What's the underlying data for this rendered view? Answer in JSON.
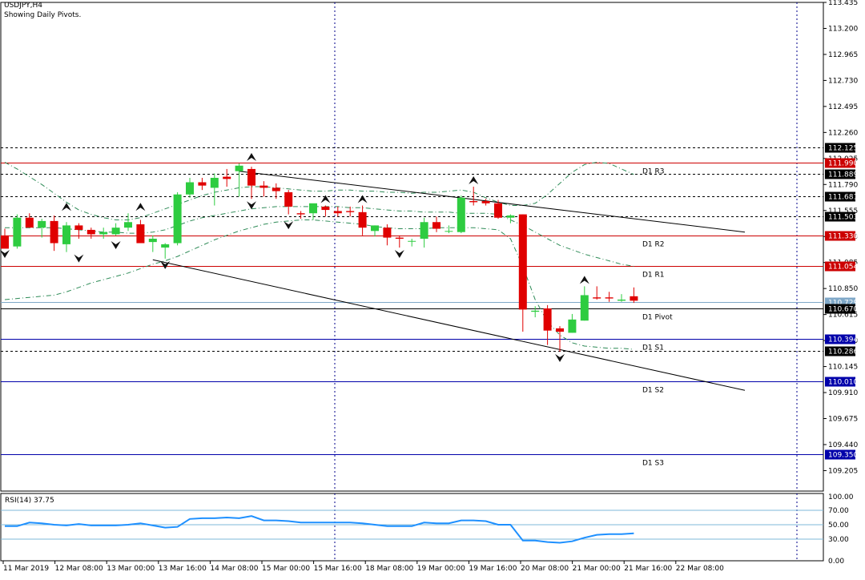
{
  "chart_data": {
    "type": "candlestick",
    "symbol_line": "USDJPY,H4",
    "subtitle": "Showing Daily Pivots.",
    "y_ticks": [
      "113.435",
      "113.200",
      "112.965",
      "112.730",
      "112.495",
      "112.260",
      "112.025",
      "111.790",
      "111.555",
      "111.320",
      "111.085",
      "110.850",
      "110.615",
      "110.380",
      "110.145",
      "109.910",
      "109.675",
      "109.440",
      "109.205"
    ],
    "y_range": [
      109.02,
      113.435
    ],
    "x_labels": [
      "11 Mar 2019",
      "12 Mar 08:00",
      "13 Mar 00:00",
      "13 Mar 16:00",
      "14 Mar 08:00",
      "15 Mar 00:00",
      "15 Mar 16:00",
      "18 Mar 08:00",
      "19 Mar 00:00",
      "19 Mar 16:00",
      "20 Mar 08:00",
      "21 Mar 00:00",
      "21 Mar 16:00",
      "22 Mar 08:00"
    ],
    "candles": [
      [
        111.33,
        111.39,
        111.22,
        111.21
      ],
      [
        111.23,
        111.52,
        111.21,
        111.49
      ],
      [
        111.49,
        111.53,
        111.41,
        111.4
      ],
      [
        111.4,
        111.48,
        111.31,
        111.46
      ],
      [
        111.46,
        111.51,
        111.19,
        111.26
      ],
      [
        111.25,
        111.45,
        111.18,
        111.42
      ],
      [
        111.42,
        111.44,
        111.3,
        111.38
      ],
      [
        111.38,
        111.4,
        111.3,
        111.34
      ],
      [
        111.34,
        111.4,
        111.3,
        111.36
      ],
      [
        111.34,
        111.44,
        111.33,
        111.4
      ],
      [
        111.4,
        111.53,
        111.37,
        111.45
      ],
      [
        111.43,
        111.47,
        111.29,
        111.26
      ],
      [
        111.27,
        111.33,
        111.18,
        111.3
      ],
      [
        111.22,
        111.26,
        111.12,
        111.25
      ],
      [
        111.26,
        111.72,
        111.24,
        111.7
      ],
      [
        111.7,
        111.85,
        111.67,
        111.81
      ],
      [
        111.81,
        111.85,
        111.74,
        111.78
      ],
      [
        111.76,
        111.89,
        111.6,
        111.85
      ],
      [
        111.86,
        111.93,
        111.77,
        111.84
      ],
      [
        111.91,
        111.98,
        111.68,
        111.96
      ],
      [
        111.93,
        111.95,
        111.66,
        111.78
      ],
      [
        111.78,
        111.82,
        111.68,
        111.76
      ],
      [
        111.76,
        111.8,
        111.66,
        111.73
      ],
      [
        111.72,
        111.74,
        111.52,
        111.59
      ],
      [
        111.53,
        111.55,
        111.48,
        111.52
      ],
      [
        111.53,
        111.6,
        111.47,
        111.62
      ],
      [
        111.59,
        111.6,
        111.5,
        111.56
      ],
      [
        111.55,
        111.59,
        111.5,
        111.53
      ],
      [
        111.55,
        111.59,
        111.5,
        111.54
      ],
      [
        111.54,
        111.6,
        111.33,
        111.4
      ],
      [
        111.37,
        111.42,
        111.32,
        111.42
      ],
      [
        111.4,
        111.43,
        111.24,
        111.31
      ],
      [
        111.31,
        111.33,
        111.22,
        111.3
      ],
      [
        111.28,
        111.3,
        111.23,
        111.28
      ],
      [
        111.3,
        111.49,
        111.22,
        111.45
      ],
      [
        111.45,
        111.5,
        111.36,
        111.39
      ],
      [
        111.37,
        111.42,
        111.35,
        111.37
      ],
      [
        111.36,
        111.69,
        111.35,
        111.67
      ],
      [
        111.64,
        111.77,
        111.6,
        111.63
      ],
      [
        111.64,
        111.66,
        111.6,
        111.62
      ],
      [
        111.62,
        111.65,
        111.48,
        111.49
      ],
      [
        111.49,
        111.52,
        111.44,
        111.51
      ],
      [
        111.52,
        111.52,
        110.46,
        110.66
      ],
      [
        110.64,
        110.69,
        110.59,
        110.65
      ],
      [
        110.67,
        110.7,
        110.34,
        110.47
      ],
      [
        110.49,
        110.51,
        110.28,
        110.46
      ],
      [
        110.45,
        110.62,
        110.45,
        110.57
      ],
      [
        110.56,
        110.87,
        110.56,
        110.79
      ],
      [
        110.77,
        110.87,
        110.75,
        110.76
      ],
      [
        110.77,
        110.82,
        110.73,
        110.76
      ],
      [
        110.74,
        110.8,
        110.73,
        110.75
      ],
      [
        110.78,
        110.86,
        110.72,
        110.74
      ]
    ],
    "horizontal_levels": [
      {
        "value": 112.125,
        "label": "112.125",
        "style": "dotted",
        "color": "#000000"
      },
      {
        "value": 111.99,
        "label": "111.990",
        "style": "solid",
        "color": "#cc0000",
        "name": "D1 R3"
      },
      {
        "value": 111.889,
        "label": "111.889",
        "style": "dotted",
        "color": "#000000"
      },
      {
        "value": 111.681,
        "label": "111.681",
        "style": "dotted",
        "color": "#000000"
      },
      {
        "value": 111.503,
        "label": "111.503",
        "style": "dotted",
        "color": "#000000"
      },
      {
        "value": 111.33,
        "label": "111.330",
        "style": "solid",
        "color": "#cc0000",
        "name": "D1 R2"
      },
      {
        "value": 111.054,
        "label": "111.054",
        "style": "solid",
        "color": "#cc0000",
        "name": "D1 R1"
      },
      {
        "value": 110.729,
        "label": "110.729",
        "style": "solid",
        "color": "#7fa8c8"
      },
      {
        "value": 110.67,
        "label": "110.670",
        "style": "solid",
        "color": "#000000",
        "name": "D1 Pivot"
      },
      {
        "value": 110.394,
        "label": "110.394",
        "style": "solid",
        "color": "#0000aa",
        "name": "D1 S1"
      },
      {
        "value": 110.286,
        "label": "110.286",
        "style": "dotted",
        "color": "#000000"
      },
      {
        "value": 110.01,
        "label": "110.010",
        "style": "solid",
        "color": "#0000aa",
        "name": "D1 S2"
      },
      {
        "value": 109.35,
        "label": "109.350",
        "style": "solid",
        "color": "#0000aa",
        "name": "D1 S3"
      }
    ],
    "trendlines": [
      {
        "from": [
          19,
          111.91
        ],
        "to": [
          60,
          111.36
        ]
      },
      {
        "from": [
          12,
          111.11
        ],
        "to": [
          60,
          109.93
        ]
      }
    ],
    "upper_band": [
      111.99,
      111.93,
      111.86,
      111.79,
      111.71,
      111.63,
      111.56,
      111.52,
      111.49,
      111.47,
      111.47,
      111.49,
      111.53,
      111.57,
      111.61,
      111.65,
      111.69,
      111.72,
      111.74,
      111.76,
      111.77,
      111.77,
      111.76,
      111.75,
      111.74,
      111.73,
      111.73,
      111.74,
      111.74,
      111.73,
      111.73,
      111.72,
      111.72,
      111.71,
      111.72,
      111.72,
      111.73,
      111.74,
      111.72,
      111.67,
      111.63,
      111.6,
      111.6,
      111.62,
      111.7,
      111.8,
      111.9,
      111.97,
      111.99,
      111.98,
      111.93,
      111.88
    ],
    "middle_band": [
      111.4,
      111.4,
      111.4,
      111.4,
      111.4,
      111.39,
      111.38,
      111.37,
      111.36,
      111.36,
      111.35,
      111.35,
      111.36,
      111.38,
      111.42,
      111.46,
      111.49,
      111.51,
      111.53,
      111.55,
      111.57,
      111.58,
      111.59,
      111.59,
      111.59,
      111.59,
      111.59,
      111.59,
      111.58,
      111.58,
      111.57,
      111.56,
      111.55,
      111.55,
      111.54,
      111.54,
      111.54,
      111.53,
      111.53,
      111.53,
      111.52,
      111.47,
      111.42,
      111.36,
      111.3,
      111.24,
      111.2,
      111.16,
      111.13,
      111.1,
      111.07,
      111.05
    ],
    "lower_band": [
      110.75,
      110.76,
      110.77,
      110.78,
      110.79,
      110.82,
      110.86,
      110.9,
      110.93,
      110.96,
      110.99,
      111.03,
      111.07,
      111.1,
      111.14,
      111.19,
      111.24,
      111.29,
      111.33,
      111.37,
      111.4,
      111.43,
      111.45,
      111.46,
      111.47,
      111.47,
      111.46,
      111.45,
      111.44,
      111.43,
      111.41,
      111.4,
      111.39,
      111.39,
      111.39,
      111.4,
      111.4,
      111.4,
      111.4,
      111.39,
      111.38,
      111.3,
      111.05,
      110.75,
      110.55,
      110.43,
      110.36,
      110.33,
      110.32,
      110.31,
      110.31,
      110.3
    ],
    "up_fractals": [
      [
        5,
        111.53
      ],
      [
        11,
        111.53
      ],
      [
        20,
        111.98
      ],
      [
        26,
        111.6
      ],
      [
        29,
        111.6
      ],
      [
        38,
        111.77
      ],
      [
        47,
        110.87
      ]
    ],
    "down_fractals": [
      [
        0,
        111.22
      ],
      [
        6,
        111.18
      ],
      [
        9,
        111.3
      ],
      [
        13,
        111.12
      ],
      [
        20,
        111.66
      ],
      [
        23,
        111.48
      ],
      [
        32,
        111.22
      ],
      [
        45,
        110.28
      ]
    ],
    "rsi": {
      "label": "RSI(14) 37.75",
      "y_ticks": [
        "100.00",
        "70.00",
        "50.00",
        "30.00",
        "0.00"
      ],
      "levels": [
        70,
        50,
        30
      ],
      "values": [
        48,
        48,
        53,
        52,
        50,
        49,
        51,
        49,
        49,
        49,
        50,
        52,
        49,
        46,
        47,
        58,
        59,
        59,
        60,
        59,
        62,
        56,
        56,
        55,
        53,
        53,
        53,
        53,
        53,
        52,
        50,
        48,
        48,
        48,
        53,
        52,
        52,
        56,
        56,
        55,
        50,
        50,
        28,
        28,
        26,
        25,
        27,
        32,
        36,
        37,
        37,
        38
      ]
    }
  }
}
